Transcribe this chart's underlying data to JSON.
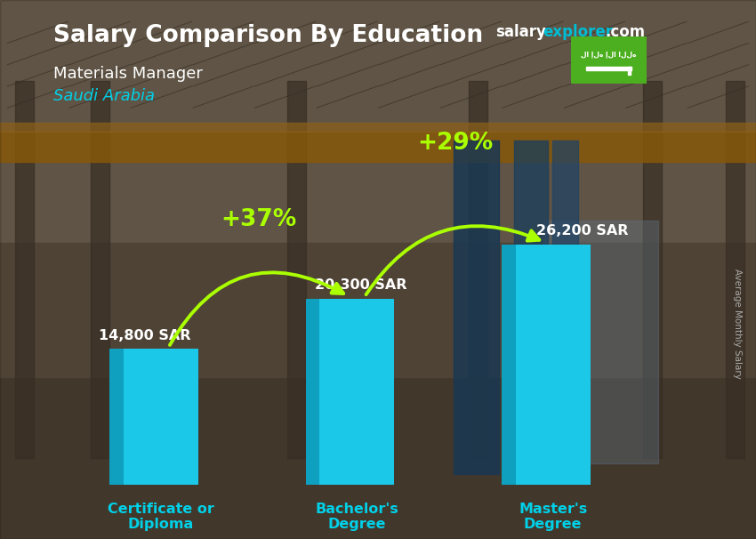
{
  "title_salary": "Salary Comparison By Education",
  "subtitle": "Materials Manager",
  "country": "Saudi Arabia",
  "ylabel_rotated": "Average Monthly Salary",
  "categories": [
    "Certificate or\nDiploma",
    "Bachelor's\nDegree",
    "Master's\nDegree"
  ],
  "values": [
    14800,
    20300,
    26200
  ],
  "value_labels": [
    "14,800 SAR",
    "20,300 SAR",
    "26,200 SAR"
  ],
  "pct_labels": [
    "+37%",
    "+29%"
  ],
  "bar_color_main": "#1bc8e8",
  "bar_color_light": "#50dcf5",
  "bar_color_side": "#0fa0bf",
  "bar_color_dark": "#0c7a94",
  "bar_width": 0.38,
  "bar_depth": 0.07,
  "arrow_color": "#aaff00",
  "bg_color": "#6b5a47",
  "title_color": "#ffffff",
  "subtitle_color": "#ffffff",
  "country_color": "#00d0e8",
  "value_label_color": "#ffffff",
  "pct_label_color": "#aaff00",
  "tick_label_color": "#00d0e8",
  "watermark_salary_color": "#ffffff",
  "watermark_explorer_color": "#00bcd4",
  "watermark_com_color": "#ffffff",
  "flag_color": "#4caf20",
  "ylim": [
    0,
    34000
  ],
  "xlim": [
    -0.55,
    2.65
  ]
}
